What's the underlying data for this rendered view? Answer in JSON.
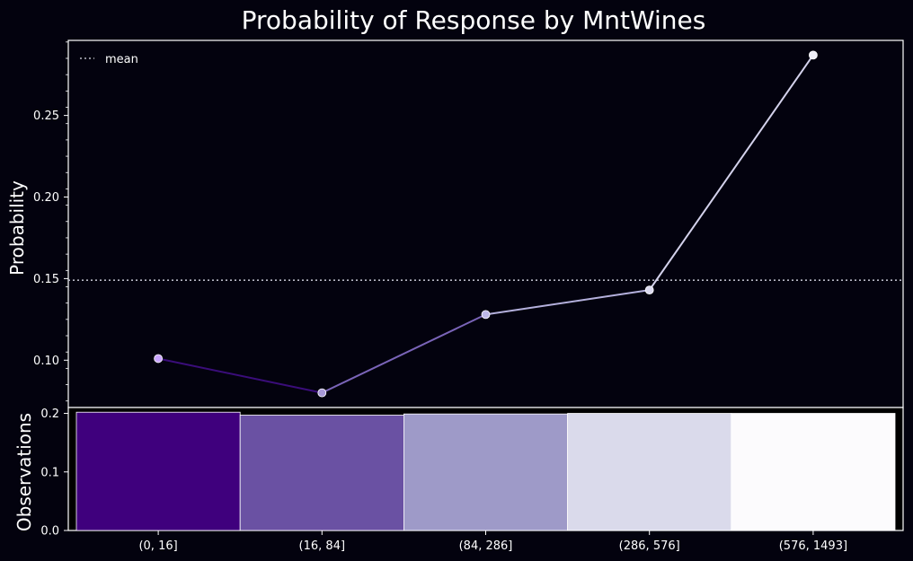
{
  "chart_data": [
    {
      "type": "line",
      "title": "Probability of Response by MntWines",
      "ylabel": "Probability",
      "categories": [
        "(0, 16]",
        "(16, 84]",
        "(84, 286]",
        "(286, 576]",
        "(576, 1493]"
      ],
      "values": [
        0.101,
        0.08,
        0.128,
        0.143,
        0.287
      ],
      "mean": 0.149,
      "legend": {
        "label": "mean",
        "position": "top-left"
      },
      "ylim": [
        0.071,
        0.296
      ],
      "yticks": [
        "0.10",
        "0.15",
        "0.20",
        "0.25"
      ],
      "ytick_values": [
        0.1,
        0.15,
        0.2,
        0.25
      ],
      "point_colors": [
        "#c9a5ff",
        "#a89ad8",
        "#bdb8e6",
        "#dcdaf0",
        "#efeef7"
      ],
      "segment_colors": [
        "#3a0d7a",
        "#7a64b8",
        "#b4b0dc",
        "#d4d2ec"
      ]
    },
    {
      "type": "bar",
      "ylabel": "Observations",
      "categories": [
        "(0, 16]",
        "(16, 84]",
        "(84, 286]",
        "(286, 576]",
        "(576, 1493]"
      ],
      "values": [
        0.202,
        0.197,
        0.199,
        0.2,
        0.2
      ],
      "ylim": [
        0,
        0.21
      ],
      "yticks": [
        "0.0",
        "0.1",
        "0.2"
      ],
      "ytick_values": [
        0.0,
        0.1,
        0.2
      ],
      "colors": [
        "#3f007d",
        "#6a51a3",
        "#9e9ac8",
        "#dadaeb",
        "#fcfbfd"
      ]
    }
  ]
}
